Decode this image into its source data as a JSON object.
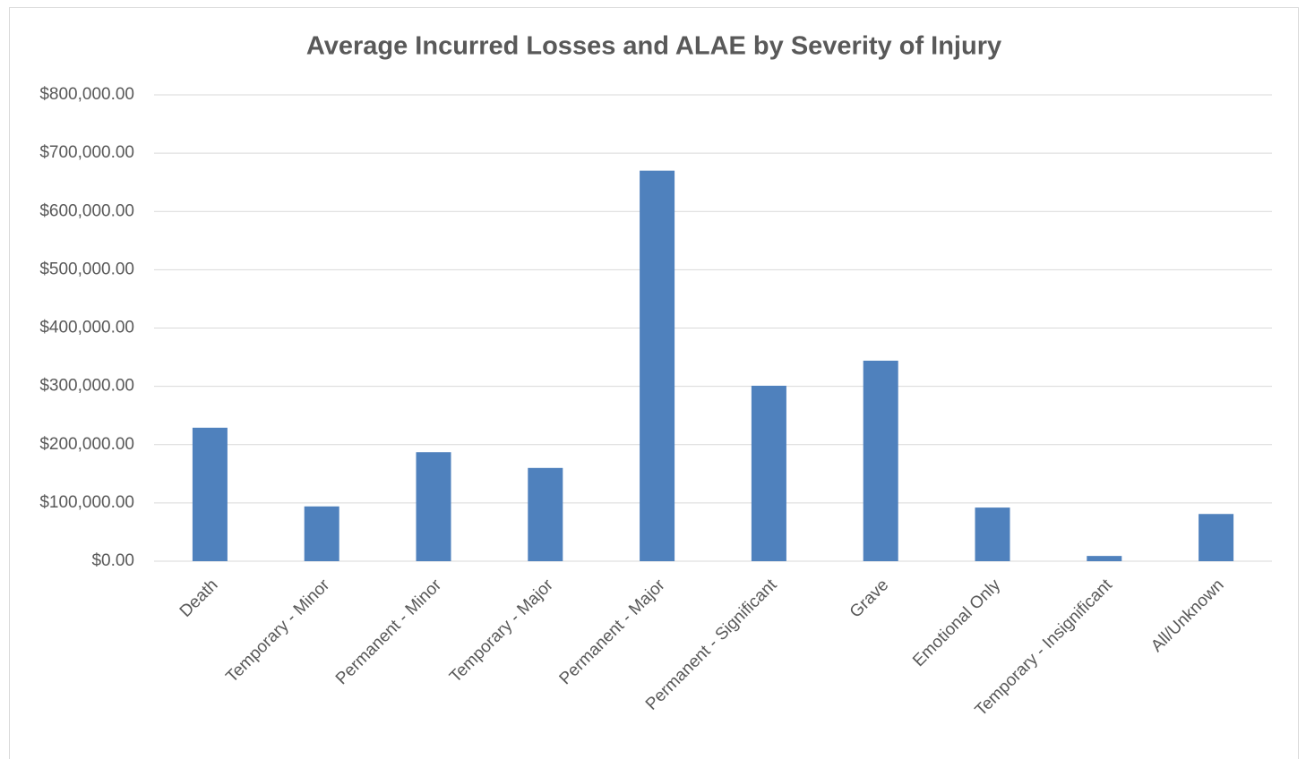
{
  "chart_data": {
    "type": "bar",
    "title": "Average Incurred Losses and ALAE by Severity of Injury",
    "categories": [
      "Death",
      "Temporary - Minor",
      "Permanent - Minor",
      "Temporary - Major",
      "Permanent - Major",
      "Permanent - Significant",
      "Grave",
      "Emotional Only",
      "Temporary - Insignificant",
      "All/Unknown"
    ],
    "values": [
      229000,
      94000,
      187000,
      160000,
      670000,
      301000,
      344000,
      92000,
      9000,
      81000
    ],
    "color": "#4f81bd",
    "ylim": [
      0,
      800000
    ],
    "yticks": [
      {
        "value": 0,
        "label": "$0.00"
      },
      {
        "value": 100000,
        "label": "$100,000.00"
      },
      {
        "value": 200000,
        "label": "$200,000.00"
      },
      {
        "value": 300000,
        "label": "$300,000.00"
      },
      {
        "value": 400000,
        "label": "$400,000.00"
      },
      {
        "value": 500000,
        "label": "$500,000.00"
      },
      {
        "value": 600000,
        "label": "$600,000.00"
      },
      {
        "value": 700000,
        "label": "$700,000.00"
      },
      {
        "value": 800000,
        "label": "$800,000.00"
      }
    ],
    "grid": true
  }
}
